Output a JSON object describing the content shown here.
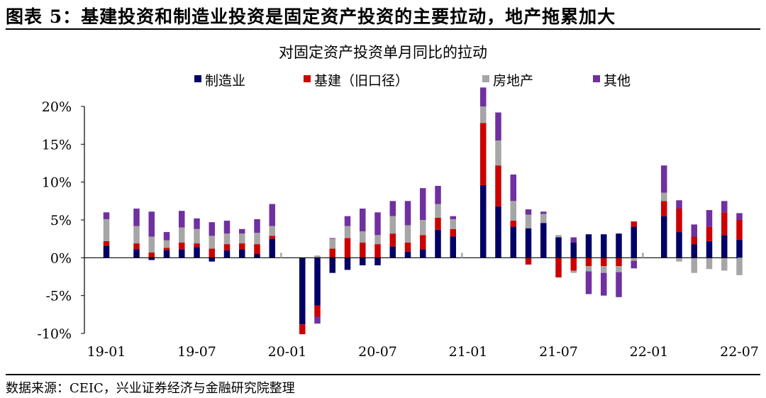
{
  "figure": {
    "title": "图表 5：基建投资和制造业投资是固定资产投资的主要拉动，地产拖累加大",
    "source": "数据来源：CEIC，兴业证券经济与金融研究院整理"
  },
  "chart_data": {
    "type": "stacked-bar",
    "title": "对固定资产投资单月同比的拉动",
    "ylabel": "",
    "xlabel": "",
    "ylim": [
      -10,
      20
    ],
    "yticks": [
      -10,
      -5,
      0,
      5,
      10,
      15,
      20
    ],
    "ytick_labels": [
      "-10%",
      "-5%",
      "0%",
      "5%",
      "10%",
      "15%",
      "20%"
    ],
    "grid": false,
    "legend_position": "top",
    "categories": [
      "19-01",
      "19-02",
      "19-03",
      "19-04",
      "19-05",
      "19-06",
      "19-07",
      "19-08",
      "19-09",
      "19-10",
      "19-11",
      "19-12",
      "20-01",
      "20-02",
      "20-03",
      "20-04",
      "20-05",
      "20-06",
      "20-07",
      "20-08",
      "20-09",
      "20-10",
      "20-11",
      "20-12",
      "21-01",
      "21-02",
      "21-03",
      "21-04",
      "21-05",
      "21-06",
      "21-07",
      "21-08",
      "21-09",
      "21-10",
      "21-11",
      "21-12",
      "22-01",
      "22-02",
      "22-03",
      "22-04",
      "22-05",
      "22-06",
      "22-07"
    ],
    "x_tick_labels": [
      {
        "label": "19-01",
        "index": 0
      },
      {
        "label": "19-07",
        "index": 6
      },
      {
        "label": "20-01",
        "index": 12
      },
      {
        "label": "20-07",
        "index": 18
      },
      {
        "label": "21-01",
        "index": 24
      },
      {
        "label": "21-07",
        "index": 30
      },
      {
        "label": "22-01",
        "index": 36
      },
      {
        "label": "22-07",
        "index": 42
      }
    ],
    "series": [
      {
        "name": "制造业",
        "color": "#000066",
        "values": [
          1.6,
          null,
          1.1,
          -0.3,
          1.0,
          1.1,
          1.4,
          -0.5,
          1.0,
          1.1,
          0.5,
          2.5,
          null,
          -8.8,
          -6.3,
          -2.0,
          -1.6,
          -1.0,
          -1.0,
          1.5,
          0.8,
          1.1,
          3.7,
          2.8,
          null,
          9.6,
          6.8,
          4.1,
          3.9,
          4.6,
          2.7,
          2.0,
          3.1,
          3.1,
          3.2,
          4.1,
          null,
          5.5,
          3.4,
          1.8,
          2.2,
          3.0,
          2.4
        ]
      },
      {
        "name": "基建（旧口径）",
        "color": "#cc0000",
        "values": [
          0.6,
          null,
          0.8,
          0.7,
          0.3,
          0.9,
          0.5,
          1.2,
          0.8,
          0.8,
          1.3,
          0.4,
          null,
          -1.3,
          -1.5,
          1.2,
          2.6,
          2.0,
          1.8,
          1.7,
          1.2,
          1.9,
          1.6,
          1.0,
          null,
          8.2,
          5.4,
          0.8,
          -0.9,
          0.0,
          -2.6,
          -1.7,
          -1.1,
          -1.1,
          -1.1,
          0.7,
          null,
          2.0,
          3.1,
          1.0,
          1.9,
          3.0,
          2.6
        ]
      },
      {
        "name": "房地产",
        "color": "#a6a6a6",
        "values": [
          2.9,
          null,
          2.3,
          2.1,
          1.0,
          2.0,
          1.9,
          1.7,
          1.4,
          1.3,
          1.5,
          1.3,
          null,
          0.0,
          0.3,
          1.3,
          1.6,
          1.5,
          1.2,
          2.3,
          2.3,
          2.0,
          1.8,
          1.3,
          null,
          2.2,
          3.3,
          2.6,
          1.8,
          1.2,
          0.3,
          -0.3,
          -0.7,
          -0.9,
          -0.8,
          -0.4,
          null,
          1.1,
          -0.5,
          -2.0,
          -1.5,
          -1.7,
          -2.3
        ]
      },
      {
        "name": "其他",
        "color": "#7030a0",
        "values": [
          0.9,
          null,
          2.3,
          3.3,
          1.1,
          2.2,
          1.4,
          1.8,
          1.7,
          0.6,
          1.8,
          2.9,
          null,
          0.0,
          -0.9,
          0.1,
          1.3,
          3.0,
          3.0,
          2.0,
          3.2,
          4.2,
          2.4,
          0.4,
          null,
          2.5,
          3.7,
          3.5,
          0.7,
          0.3,
          0.0,
          0.7,
          -3.0,
          -3.0,
          -3.3,
          -1.0,
          null,
          3.6,
          1.1,
          1.6,
          2.2,
          1.5,
          0.9
        ]
      }
    ]
  }
}
